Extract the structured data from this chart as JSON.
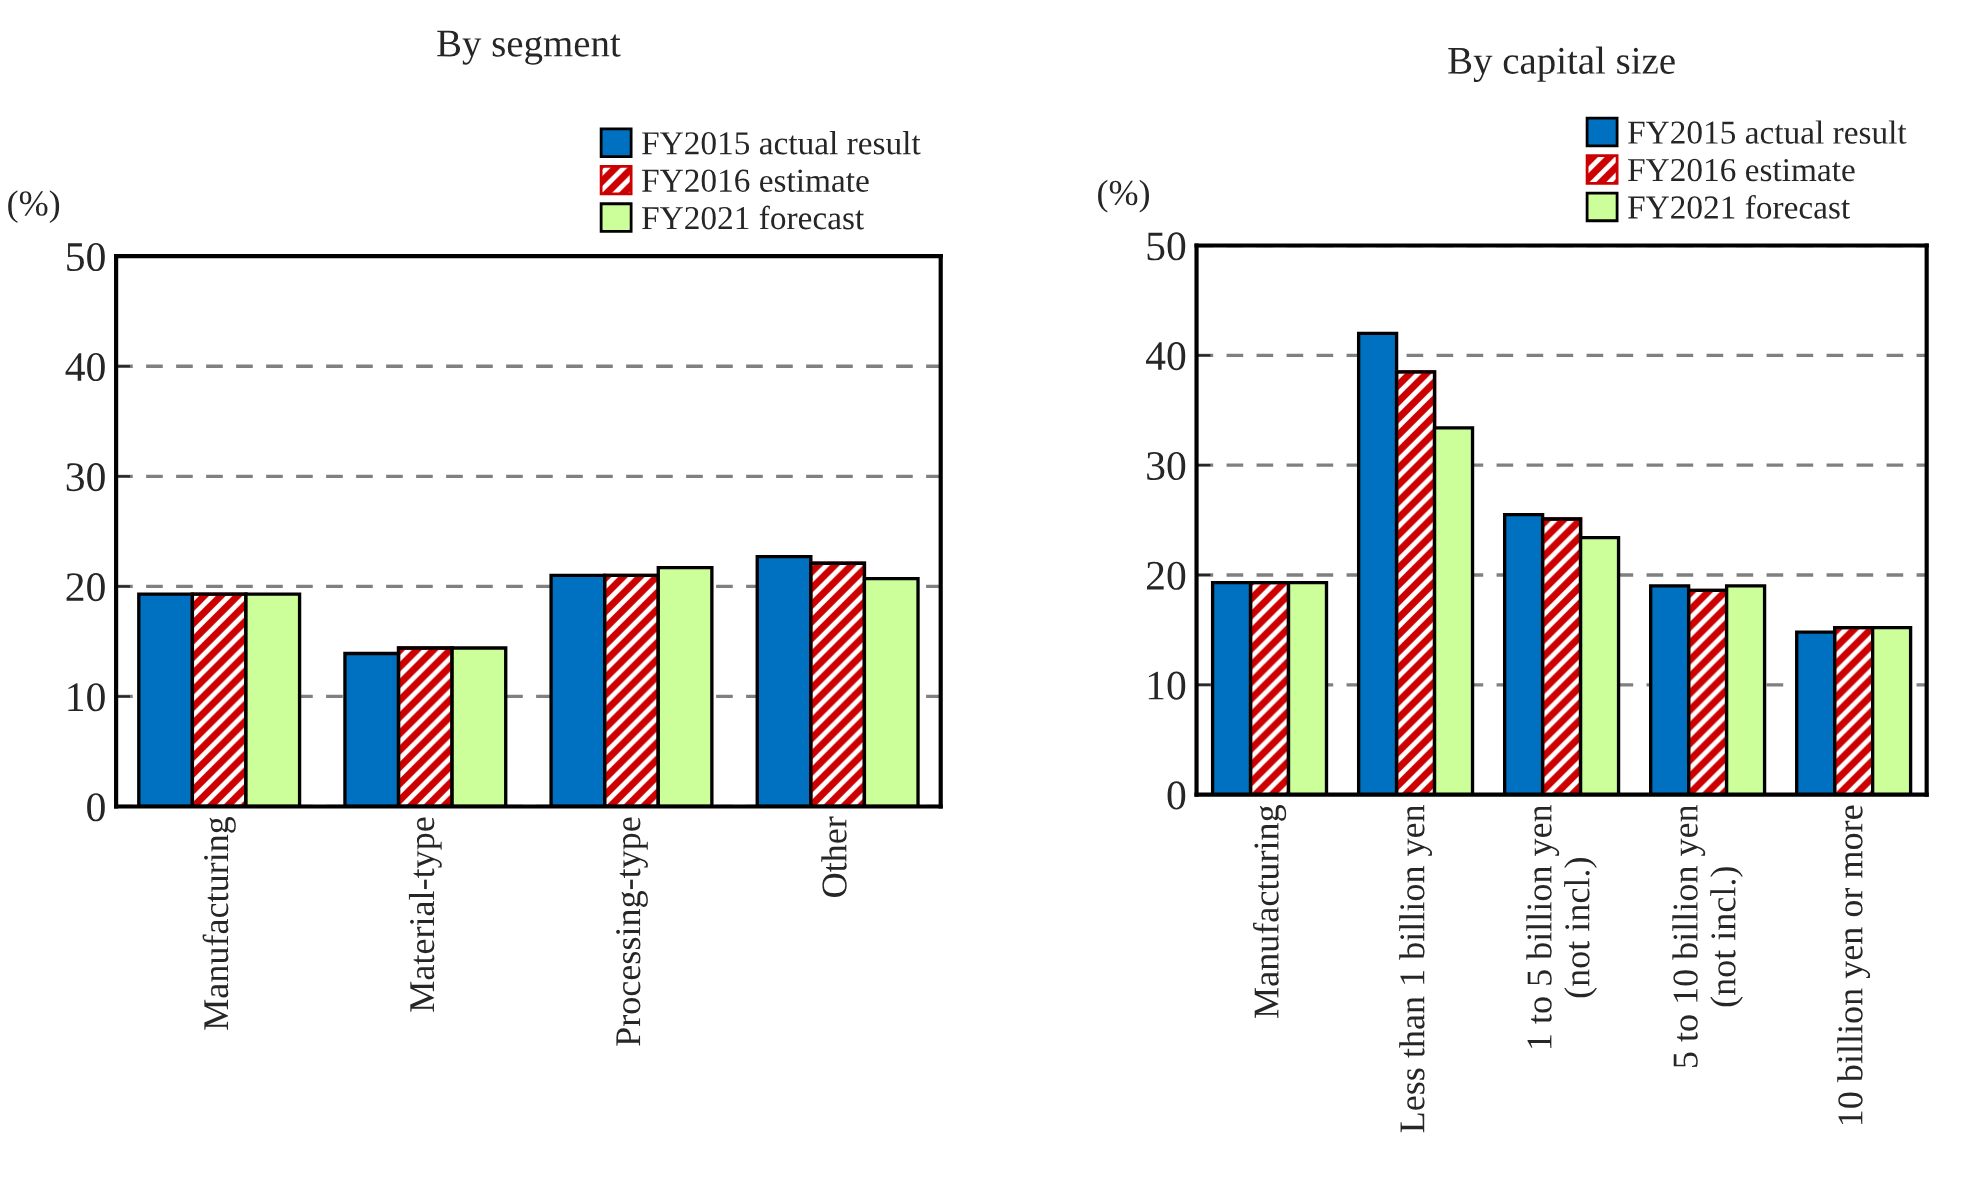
{
  "chart_data": [
    {
      "type": "bar",
      "title": "By segment",
      "ylabel": "(%)",
      "categories": [
        "Manufacturing",
        "Material-type",
        "Processing-type",
        "Other"
      ],
      "series": [
        {
          "name": "FY2015 actual result",
          "color": "#0070c0",
          "values": [
            19.3,
            13.9,
            21.0,
            22.7
          ]
        },
        {
          "name": "FY2016 estimate",
          "color": "#cc0000",
          "values": [
            19.3,
            14.4,
            21.0,
            22.1
          ]
        },
        {
          "name": "FY2021 forecast",
          "color": "#ccff99",
          "values": [
            19.3,
            14.4,
            21.7,
            20.7
          ]
        }
      ],
      "ylim": [
        0,
        50
      ],
      "yticks": [
        0,
        10,
        20,
        30,
        40,
        50
      ],
      "grid": "y",
      "legend": "top right"
    },
    {
      "type": "bar",
      "title": "By capital size",
      "ylabel": "(%)",
      "categories": [
        "Manufacturing",
        "Less than 1 billion yen",
        "1 to 5 billion yen\n(not incl.)",
        "5 to 10 billion yen\n(not incl.)",
        "10 billion yen or more"
      ],
      "series": [
        {
          "name": "FY2015 actual result",
          "color": "#0070c0",
          "values": [
            19.3,
            42.0,
            25.5,
            19.0,
            14.8
          ]
        },
        {
          "name": "FY2016 estimate",
          "color": "#cc0000",
          "values": [
            19.3,
            38.5,
            25.1,
            18.6,
            15.2
          ]
        },
        {
          "name": "FY2021 forecast",
          "color": "#ccff99",
          "values": [
            19.3,
            33.4,
            23.4,
            19.0,
            15.2
          ]
        }
      ],
      "ylim": [
        0,
        50
      ],
      "yticks": [
        0,
        10,
        20,
        30,
        40,
        50
      ],
      "grid": "y",
      "legend": "top right"
    }
  ]
}
